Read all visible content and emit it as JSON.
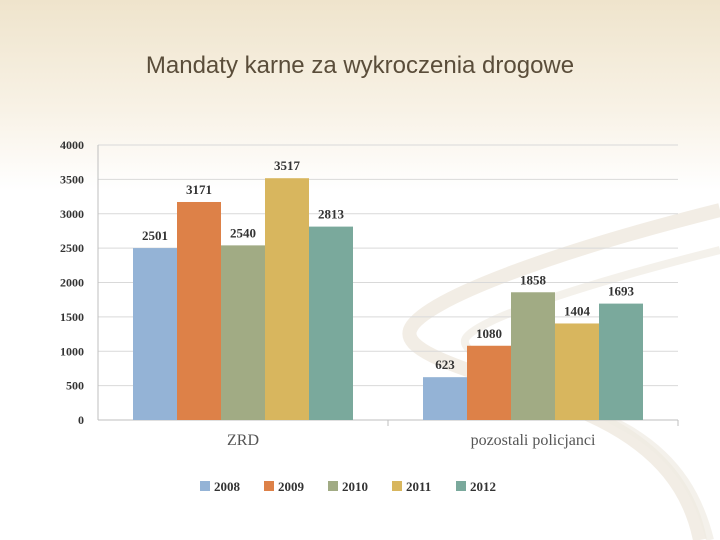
{
  "slide": {
    "title": "Mandaty karne za wykroczenia drogowe"
  },
  "chart_data": {
    "type": "bar",
    "title": "",
    "xlabel": "",
    "ylabel": "",
    "categories": [
      "ZRD",
      "pozostali policjanci"
    ],
    "series": [
      {
        "name": "2008",
        "values": [
          2501,
          623
        ],
        "color": "#94b3d6"
      },
      {
        "name": "2009",
        "values": [
          3171,
          1080
        ],
        "color": "#dd8148"
      },
      {
        "name": "2010",
        "values": [
          2540,
          1858
        ],
        "color": "#a1ab84"
      },
      {
        "name": "2011",
        "values": [
          3517,
          1404
        ],
        "color": "#d8b65e"
      },
      {
        "name": "2012",
        "values": [
          2813,
          1693
        ],
        "color": "#7aa99c"
      }
    ],
    "ylim": [
      0,
      4000
    ],
    "yticks": [
      0,
      500,
      1000,
      1500,
      2000,
      2500,
      3000,
      3500,
      4000
    ],
    "grid": true,
    "legend_position": "bottom"
  }
}
